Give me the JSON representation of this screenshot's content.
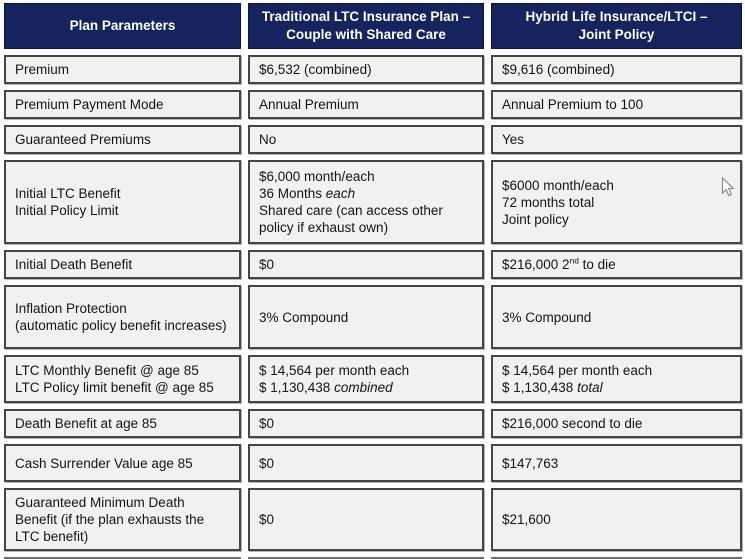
{
  "header": {
    "col1": "Plan Parameters",
    "col2": "Traditional LTC Insurance Plan –\nCouple with Shared Care",
    "col3": "Hybrid Life Insurance/LTCI –\nJoint Policy"
  },
  "colors": {
    "header_bg": "#15245E",
    "header_text": "#FFFFFF",
    "cell_bg": "#F1F1F0",
    "cell_border": "#454545",
    "text": "#141414"
  },
  "icons": {
    "cursor": "mouse-arrow-pointer"
  },
  "rows": [
    {
      "param": [
        [
          {
            "t": "Premium"
          }
        ]
      ],
      "traditional": [
        [
          {
            "t": "$6,532 (combined)"
          }
        ]
      ],
      "hybrid": [
        [
          {
            "t": "$9,616 (combined)"
          }
        ]
      ]
    },
    {
      "param": [
        [
          {
            "t": "Premium Payment Mode"
          }
        ]
      ],
      "traditional": [
        [
          {
            "t": "Annual Premium"
          }
        ]
      ],
      "hybrid": [
        [
          {
            "t": "Annual Premium to 100"
          }
        ]
      ]
    },
    {
      "param": [
        [
          {
            "t": "Guaranteed Premiums"
          }
        ]
      ],
      "traditional": [
        [
          {
            "t": "No"
          }
        ]
      ],
      "hybrid": [
        [
          {
            "t": "Yes"
          }
        ]
      ]
    },
    {
      "param": [
        [
          {
            "t": "Initial LTC Benefit"
          }
        ],
        [
          {
            "t": "Initial Policy Limit"
          }
        ]
      ],
      "traditional": [
        [
          {
            "t": "$6,000 month/each"
          }
        ],
        [
          {
            "t": "36 Months "
          },
          {
            "t": "each",
            "i": true
          }
        ],
        [
          {
            "t": "Shared care (can access other policy if exhaust own)"
          }
        ]
      ],
      "hybrid": [
        [
          {
            "t": "$6000 month/each"
          }
        ],
        [
          {
            "t": "72 months total"
          }
        ],
        [
          {
            "t": "Joint policy"
          }
        ]
      ]
    },
    {
      "param": [
        [
          {
            "t": "Initial Death Benefit"
          }
        ]
      ],
      "traditional": [
        [
          {
            "t": "$0"
          }
        ]
      ],
      "hybrid": [
        [
          {
            "t": "$216,000 2"
          },
          {
            "t": "nd",
            "sup": true
          },
          {
            "t": " to die"
          }
        ]
      ]
    },
    {
      "param": [
        [
          {
            "t": "Inflation Protection"
          }
        ],
        [
          {
            "t": "(automatic policy benefit increases)"
          }
        ]
      ],
      "traditional": [
        [
          {
            "t": "3% Compound"
          }
        ]
      ],
      "hybrid": [
        [
          {
            "t": "3% Compound"
          }
        ]
      ]
    },
    {
      "param": [
        [
          {
            "t": "LTC Monthly Benefit @ age 85"
          }
        ],
        [
          {
            "t": "LTC Policy limit benefit @ age 85"
          }
        ]
      ],
      "traditional": [
        [
          {
            "t": "$ 14,564 per month each"
          }
        ],
        [
          {
            "t": "$ 1,130,438 "
          },
          {
            "t": "combined",
            "i": true
          }
        ]
      ],
      "hybrid": [
        [
          {
            "t": "$ 14,564 per month each"
          }
        ],
        [
          {
            "t": "$ 1,130,438 "
          },
          {
            "t": "total",
            "i": true
          }
        ]
      ]
    },
    {
      "param": [
        [
          {
            "t": "Death Benefit at age 85"
          }
        ]
      ],
      "traditional": [
        [
          {
            "t": "$0"
          }
        ]
      ],
      "hybrid": [
        [
          {
            "t": "$216,000 second to die"
          }
        ]
      ]
    },
    {
      "param": [
        [
          {
            "t": "Cash Surrender Value age 85"
          }
        ]
      ],
      "traditional": [
        [
          {
            "t": "$0"
          }
        ]
      ],
      "hybrid": [
        [
          {
            "t": "$147,763"
          }
        ]
      ]
    },
    {
      "param": [
        [
          {
            "t": "Guaranteed Minimum Death Benefit (if the plan exhausts the LTC benefit)"
          }
        ]
      ],
      "traditional": [
        [
          {
            "t": "$0"
          }
        ]
      ],
      "hybrid": [
        [
          {
            "t": "$21,600"
          }
        ]
      ]
    }
  ]
}
